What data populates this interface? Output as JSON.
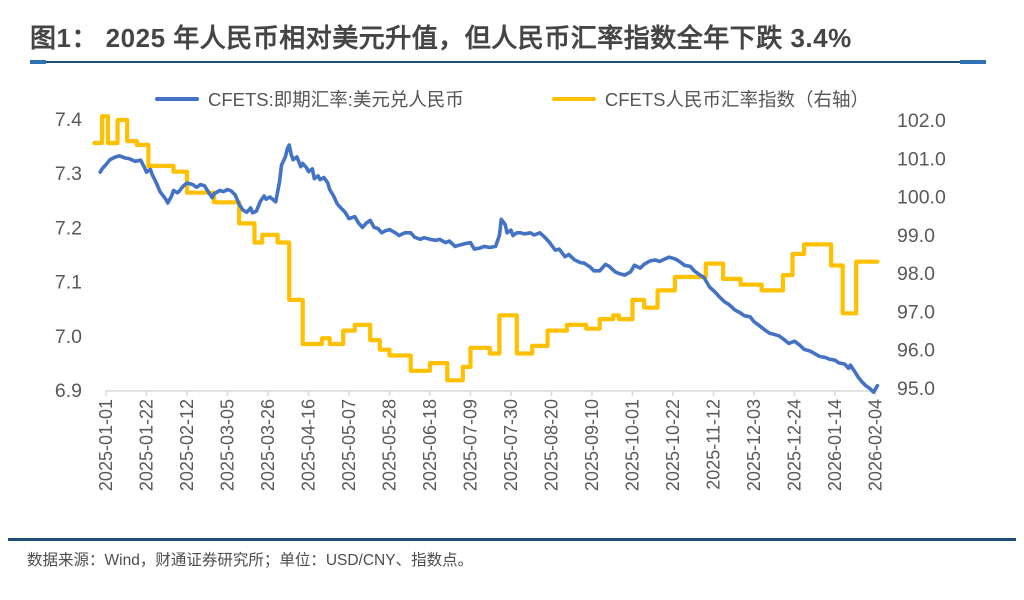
{
  "title": {
    "text": "图1： 2025 年人民币相对美元升值，但人民币汇率指数全年下跌 3.4%"
  },
  "legend": [
    {
      "label": "CFETS:即期汇率:美元兑人民币",
      "color": "#4472C4"
    },
    {
      "label": "CFETS人民币汇率指数（右轴）",
      "color": "#FFC000"
    }
  ],
  "footer": {
    "text": "数据来源：Wind，财通证券研究所；单位：USD/CNY、指数点。"
  },
  "colors": {
    "series_usdcny": "#4472C4",
    "series_cfets_index": "#FFC000",
    "axis_line": "#D9D9D9",
    "tick_text": "#595959",
    "rule_navy": "#1F4E79",
    "rule_cap_blue": "#2E74B5"
  },
  "chart_data": {
    "type": "line",
    "title": "2025 年人民币相对美元升值，但人民币汇率指数全年下跌 3.4%",
    "grid": false,
    "legend_position": "top",
    "x_axis": {
      "unit": "date",
      "tick_interval_days": 21,
      "tick_labels": [
        "2025-01-01",
        "2025-01-22",
        "2025-02-12",
        "2025-03-05",
        "2025-03-26",
        "2025-04-16",
        "2025-05-07",
        "2025-05-28",
        "2025-06-18",
        "2025-07-09",
        "2025-07-30",
        "2025-08-20",
        "2025-09-10",
        "2025-10-01",
        "2025-10-22",
        "2025-11-12",
        "2025-12-03",
        "2025-12-24",
        "2026-01-14",
        "2026-02-04"
      ],
      "domain_days": [
        -6,
        400
      ]
    },
    "y_axis_left": {
      "label": "USD/CNY",
      "range": [
        6.9,
        7.4
      ],
      "tick_labels": [
        "7.4",
        "7.3",
        "7.2",
        "7.1",
        "7.0",
        "6.9"
      ],
      "ticks": [
        7.4,
        7.3,
        7.2,
        7.1,
        7.0,
        6.9
      ]
    },
    "y_axis_right": {
      "label": "指数点",
      "range": [
        95.0,
        102.0
      ],
      "tick_labels": [
        "102.0",
        "101.0",
        "100.0",
        "99.0",
        "98.0",
        "97.0",
        "96.0",
        "95.0"
      ],
      "ticks": [
        102.0,
        101.0,
        100.0,
        99.0,
        98.0,
        97.0,
        96.0,
        95.0
      ]
    },
    "series": [
      {
        "name": "CFETS:即期汇率:美元兑人民币",
        "axis": "left",
        "color": "#4472C4",
        "interpolation": "linear",
        "points": [
          [
            -3,
            7.302
          ],
          [
            -2,
            7.308
          ],
          [
            0,
            7.316
          ],
          [
            2,
            7.325
          ],
          [
            5,
            7.33
          ],
          [
            7,
            7.332
          ],
          [
            10,
            7.328
          ],
          [
            12,
            7.327
          ],
          [
            15,
            7.322
          ],
          [
            18,
            7.324
          ],
          [
            20,
            7.31
          ],
          [
            21,
            7.302
          ],
          [
            23,
            7.307
          ],
          [
            24,
            7.297
          ],
          [
            26,
            7.283
          ],
          [
            28,
            7.266
          ],
          [
            31,
            7.252
          ],
          [
            32,
            7.245
          ],
          [
            34,
            7.258
          ],
          [
            35,
            7.268
          ],
          [
            37,
            7.264
          ],
          [
            38,
            7.267
          ],
          [
            40,
            7.276
          ],
          [
            42,
            7.282
          ],
          [
            45,
            7.279
          ],
          [
            47,
            7.274
          ],
          [
            49,
            7.279
          ],
          [
            51,
            7.277
          ],
          [
            53,
            7.266
          ],
          [
            55,
            7.255
          ],
          [
            56,
            7.262
          ],
          [
            59,
            7.268
          ],
          [
            61,
            7.266
          ],
          [
            63,
            7.27
          ],
          [
            65,
            7.267
          ],
          [
            67,
            7.26
          ],
          [
            69,
            7.243
          ],
          [
            71,
            7.232
          ],
          [
            73,
            7.228
          ],
          [
            75,
            7.236
          ],
          [
            76,
            7.227
          ],
          [
            78,
            7.23
          ],
          [
            80,
            7.248
          ],
          [
            82,
            7.258
          ],
          [
            83,
            7.252
          ],
          [
            85,
            7.256
          ],
          [
            87,
            7.25
          ],
          [
            88,
            7.247
          ],
          [
            90,
            7.285
          ],
          [
            91,
            7.315
          ],
          [
            93,
            7.33
          ],
          [
            94,
            7.345
          ],
          [
            95,
            7.352
          ],
          [
            96,
            7.335
          ],
          [
            97,
            7.325
          ],
          [
            99,
            7.33
          ],
          [
            101,
            7.312
          ],
          [
            102,
            7.318
          ],
          [
            104,
            7.31
          ],
          [
            105,
            7.303
          ],
          [
            107,
            7.308
          ],
          [
            108,
            7.29
          ],
          [
            110,
            7.295
          ],
          [
            111,
            7.288
          ],
          [
            113,
            7.292
          ],
          [
            115,
            7.282
          ],
          [
            116,
            7.27
          ],
          [
            118,
            7.258
          ],
          [
            120,
            7.243
          ],
          [
            122,
            7.235
          ],
          [
            124,
            7.228
          ],
          [
            126,
            7.216
          ],
          [
            129,
            7.22
          ],
          [
            131,
            7.208
          ],
          [
            133,
            7.2
          ],
          [
            135,
            7.208
          ],
          [
            137,
            7.213
          ],
          [
            139,
            7.2
          ],
          [
            141,
            7.198
          ],
          [
            143,
            7.19
          ],
          [
            145,
            7.194
          ],
          [
            147,
            7.196
          ],
          [
            150,
            7.19
          ],
          [
            152,
            7.185
          ],
          [
            155,
            7.19
          ],
          [
            158,
            7.19
          ],
          [
            160,
            7.182
          ],
          [
            163,
            7.178
          ],
          [
            165,
            7.181
          ],
          [
            168,
            7.178
          ],
          [
            171,
            7.176
          ],
          [
            173,
            7.178
          ],
          [
            176,
            7.172
          ],
          [
            178,
            7.175
          ],
          [
            181,
            7.165
          ],
          [
            184,
            7.168
          ],
          [
            186,
            7.17
          ],
          [
            189,
            7.172
          ],
          [
            191,
            7.16
          ],
          [
            194,
            7.162
          ],
          [
            196,
            7.165
          ],
          [
            199,
            7.163
          ],
          [
            202,
            7.165
          ],
          [
            204,
            7.185
          ],
          [
            205,
            7.215
          ],
          [
            207,
            7.205
          ],
          [
            208,
            7.19
          ],
          [
            210,
            7.195
          ],
          [
            211,
            7.185
          ],
          [
            213,
            7.19
          ],
          [
            215,
            7.19
          ],
          [
            217,
            7.188
          ],
          [
            220,
            7.19
          ],
          [
            222,
            7.186
          ],
          [
            225,
            7.19
          ],
          [
            228,
            7.18
          ],
          [
            230,
            7.172
          ],
          [
            233,
            7.158
          ],
          [
            235,
            7.16
          ],
          [
            238,
            7.146
          ],
          [
            240,
            7.15
          ],
          [
            243,
            7.14
          ],
          [
            246,
            7.135
          ],
          [
            248,
            7.134
          ],
          [
            251,
            7.127
          ],
          [
            253,
            7.12
          ],
          [
            256,
            7.12
          ],
          [
            259,
            7.132
          ],
          [
            261,
            7.128
          ],
          [
            264,
            7.118
          ],
          [
            266,
            7.115
          ],
          [
            269,
            7.112
          ],
          [
            272,
            7.118
          ],
          [
            274,
            7.13
          ],
          [
            277,
            7.125
          ],
          [
            279,
            7.132
          ],
          [
            282,
            7.138
          ],
          [
            285,
            7.14
          ],
          [
            287,
            7.137
          ],
          [
            290,
            7.142
          ],
          [
            292,
            7.145
          ],
          [
            295,
            7.142
          ],
          [
            297,
            7.138
          ],
          [
            300,
            7.13
          ],
          [
            303,
            7.128
          ],
          [
            305,
            7.12
          ],
          [
            308,
            7.112
          ],
          [
            310,
            7.108
          ],
          [
            313,
            7.09
          ],
          [
            316,
            7.08
          ],
          [
            318,
            7.072
          ],
          [
            321,
            7.062
          ],
          [
            323,
            7.058
          ],
          [
            326,
            7.048
          ],
          [
            329,
            7.042
          ],
          [
            331,
            7.037
          ],
          [
            334,
            7.035
          ],
          [
            336,
            7.026
          ],
          [
            339,
            7.018
          ],
          [
            342,
            7.01
          ],
          [
            344,
            7.005
          ],
          [
            347,
            7.002
          ],
          [
            349,
            7.0
          ],
          [
            352,
            6.992
          ],
          [
            354,
            6.986
          ],
          [
            357,
            6.99
          ],
          [
            360,
            6.982
          ],
          [
            362,
            6.975
          ],
          [
            365,
            6.972
          ],
          [
            367,
            6.968
          ],
          [
            370,
            6.962
          ],
          [
            373,
            6.96
          ],
          [
            375,
            6.957
          ],
          [
            378,
            6.955
          ],
          [
            380,
            6.95
          ],
          [
            383,
            6.948
          ],
          [
            385,
            6.94
          ],
          [
            386,
            6.946
          ],
          [
            388,
            6.935
          ],
          [
            390,
            6.924
          ],
          [
            392,
            6.915
          ],
          [
            394,
            6.908
          ],
          [
            396,
            6.903
          ],
          [
            398,
            6.896
          ],
          [
            400,
            6.908
          ]
        ]
      },
      {
        "name": "CFETS人民币汇率指数（右轴）",
        "axis": "right",
        "color": "#FFC000",
        "interpolation": "step-after",
        "points": [
          [
            -6,
            101.4
          ],
          [
            -2,
            102.1
          ],
          [
            1,
            101.4
          ],
          [
            6,
            102.0
          ],
          [
            11,
            101.45
          ],
          [
            16,
            101.35
          ],
          [
            22,
            100.8
          ],
          [
            35,
            100.65
          ],
          [
            42,
            100.1
          ],
          [
            56,
            99.85
          ],
          [
            69,
            99.3
          ],
          [
            77,
            98.8
          ],
          [
            81,
            99.0
          ],
          [
            89,
            98.8
          ],
          [
            95,
            97.3
          ],
          [
            102,
            96.15
          ],
          [
            112,
            96.3
          ],
          [
            116,
            96.15
          ],
          [
            123,
            96.5
          ],
          [
            129,
            96.65
          ],
          [
            137,
            96.25
          ],
          [
            142,
            96.0
          ],
          [
            147,
            95.85
          ],
          [
            158,
            95.45
          ],
          [
            168,
            95.65
          ],
          [
            177,
            95.2
          ],
          [
            185,
            95.55
          ],
          [
            189,
            96.05
          ],
          [
            199,
            95.9
          ],
          [
            204,
            96.9
          ],
          [
            213,
            95.9
          ],
          [
            221,
            96.1
          ],
          [
            229,
            96.5
          ],
          [
            239,
            96.65
          ],
          [
            249,
            96.55
          ],
          [
            256,
            96.8
          ],
          [
            263,
            96.9
          ],
          [
            266,
            96.8
          ],
          [
            273,
            97.3
          ],
          [
            279,
            97.1
          ],
          [
            286,
            97.55
          ],
          [
            295,
            97.9
          ],
          [
            311,
            98.25
          ],
          [
            320,
            97.85
          ],
          [
            329,
            97.7
          ],
          [
            340,
            97.55
          ],
          [
            351,
            97.95
          ],
          [
            356,
            98.5
          ],
          [
            362,
            98.75
          ],
          [
            376,
            98.2
          ],
          [
            382,
            96.95
          ],
          [
            389,
            98.3
          ]
        ]
      }
    ]
  }
}
